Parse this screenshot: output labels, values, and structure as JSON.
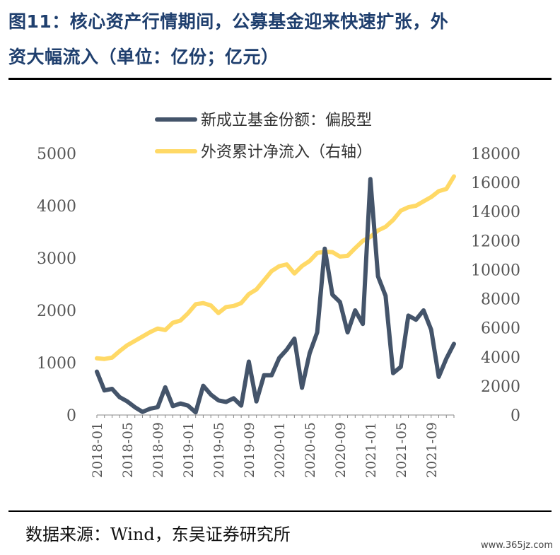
{
  "header": {
    "title_line1": "图11：核心资产行情期间，公募基金迎来快速扩张，外",
    "title_line2": "资大幅流入（单位：亿份；亿元）"
  },
  "footer": {
    "source": "数据来源：Wind，东吴证券研究所",
    "watermark": "www.365jz.com"
  },
  "colors": {
    "title": "#1f3f6e",
    "series_fund": "#44546a",
    "series_foreign": "#ffd966"
  },
  "chart_data": {
    "type": "line",
    "x": [
      "2018-01",
      "2018-02",
      "2018-03",
      "2018-04",
      "2018-05",
      "2018-06",
      "2018-07",
      "2018-08",
      "2018-09",
      "2018-10",
      "2018-11",
      "2018-12",
      "2019-01",
      "2019-02",
      "2019-03",
      "2019-04",
      "2019-05",
      "2019-06",
      "2019-07",
      "2019-08",
      "2019-09",
      "2019-10",
      "2019-11",
      "2019-12",
      "2020-01",
      "2020-02",
      "2020-03",
      "2020-04",
      "2020-05",
      "2020-06",
      "2020-07",
      "2020-08",
      "2020-09",
      "2020-10",
      "2020-11",
      "2020-12",
      "2021-01",
      "2021-02",
      "2021-03",
      "2021-04",
      "2021-05",
      "2021-06",
      "2021-07",
      "2021-08",
      "2021-09",
      "2021-10",
      "2021-11",
      "2021-12"
    ],
    "x_tick_labels": [
      "2018-01",
      "2018-05",
      "2018-09",
      "2019-01",
      "2019-05",
      "2019-09",
      "2020-01",
      "2020-05",
      "2020-09",
      "2021-01",
      "2021-05",
      "2021-09"
    ],
    "series": [
      {
        "name": "新成立基金份额：偏股型",
        "axis": "left",
        "values": [
          830,
          470,
          500,
          340,
          260,
          150,
          60,
          120,
          150,
          530,
          170,
          220,
          180,
          50,
          560,
          390,
          280,
          250,
          320,
          180,
          1020,
          260,
          760,
          760,
          1090,
          1250,
          1460,
          520,
          1180,
          1580,
          3180,
          2300,
          2160,
          1580,
          2000,
          1740,
          4510,
          2650,
          2280,
          800,
          920,
          1900,
          1820,
          2000,
          1630,
          730,
          1080,
          1360
        ]
      },
      {
        "name": "外资累计净流入（右轴）",
        "axis": "right",
        "values": [
          3900,
          3860,
          3950,
          4400,
          4800,
          5100,
          5400,
          5700,
          5950,
          5850,
          6350,
          6500,
          7000,
          7620,
          7700,
          7540,
          7020,
          7430,
          7500,
          7700,
          8320,
          8640,
          9270,
          9900,
          10240,
          10360,
          9740,
          10250,
          10600,
          11150,
          11240,
          11210,
          10900,
          10950,
          11480,
          11980,
          12260,
          12700,
          12950,
          13420,
          14060,
          14300,
          14400,
          14700,
          15000,
          15400,
          15560,
          16420
        ]
      }
    ],
    "ylim_left": [
      0,
      5000
    ],
    "yticks_left": [
      0,
      1000,
      2000,
      3000,
      4000,
      5000
    ],
    "ylim_right": [
      0,
      18000
    ],
    "yticks_right": [
      0,
      2000,
      4000,
      6000,
      8000,
      10000,
      12000,
      14000,
      16000,
      18000
    ],
    "legend_position": "top-center",
    "grid": false
  }
}
